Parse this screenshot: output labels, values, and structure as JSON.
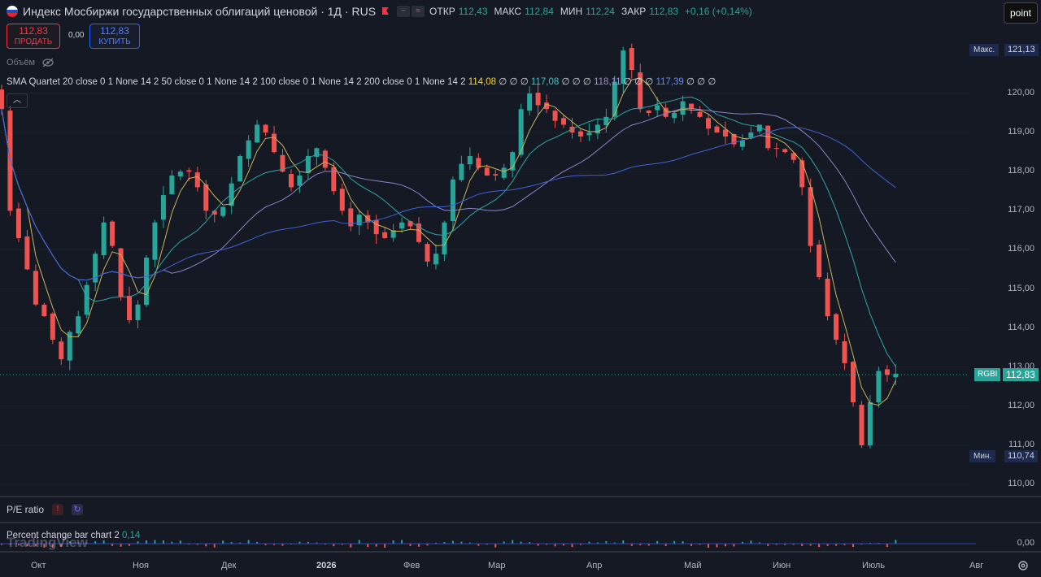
{
  "header": {
    "title": "Индекс Мосбиржи государственных облигаций ценовой · 1Д · RUS",
    "ohlc": [
      {
        "label": "ОТКР",
        "value": "112,43"
      },
      {
        "label": "МАКС",
        "value": "112,84"
      },
      {
        "label": "МИН",
        "value": "112,24"
      },
      {
        "label": "ЗАКР",
        "value": "112,83"
      }
    ],
    "change": "+0,16 (+0,14%)"
  },
  "trade": {
    "sell_price": "112,83",
    "sell_label": "ПРОДАТЬ",
    "spread": "0,00",
    "buy_price": "112,83",
    "buy_label": "КУПИТЬ"
  },
  "volume_label": "Объём",
  "sma_legend": {
    "label": "SMA Quartet 20 close 0 1 None 14 2 50 close 0 1 None 14 2 100 close 0 1 None 14 2 200 close 0 1 None 14 2",
    "v20": "114,08",
    "v50": "117,08",
    "v100": "118,11",
    "v200": "117,39",
    "empty": "∅ ∅ ∅"
  },
  "point_button": "point",
  "price_axis": {
    "ticks": [
      "120,00",
      "119,00",
      "118,00",
      "117,00",
      "116,00",
      "115,00",
      "114,00",
      "113,00",
      "112,00",
      "111,00",
      "110,00"
    ],
    "max_label": "Макс.",
    "max_value": "121,13",
    "min_label": "Мин.",
    "min_value": "110,74",
    "symbol": "RGBI",
    "last_value": "112,83"
  },
  "panes": {
    "pe_label": "P/E ratio",
    "pcb_label": "Percent change bar chart 2",
    "pcb_value": "0,14",
    "pcb_zero": "0,00",
    "logo": "TradingView"
  },
  "time_axis": [
    "Окт",
    "Ноя",
    "Дек",
    "2026",
    "Фев",
    "Мар",
    "Апр",
    "Май",
    "Июн",
    "Июль",
    "Авг"
  ],
  "colors": {
    "up": "#26a69a",
    "down": "#ef5350",
    "sma20": "#c9b458",
    "sma50": "#2fa6a6",
    "sma100": "#8b83c9",
    "sma200": "#3f63d6",
    "background": "#151924"
  },
  "chart_data": {
    "type": "candlestick",
    "interval": "1D",
    "ylim": [
      110,
      121.13
    ],
    "candles_close": [
      119.6,
      117.0,
      116.3,
      115.5,
      114.6,
      114.3,
      113.7,
      113.2,
      113.9,
      114.3,
      115.1,
      115.9,
      116.7,
      116.1,
      114.8,
      114.2,
      114.6,
      115.8,
      116.7,
      117.4,
      117.9,
      118.0,
      118.0,
      117.6,
      117.0,
      116.9,
      117.1,
      117.7,
      118.4,
      118.8,
      119.2,
      119.0,
      118.5,
      118.0,
      117.6,
      117.9,
      118.4,
      118.6,
      118.1,
      117.5,
      117.0,
      116.6,
      116.9,
      116.7,
      116.4,
      116.3,
      116.5,
      116.7,
      116.6,
      116.2,
      115.7,
      115.9,
      116.7,
      117.8,
      118.2,
      118.4,
      118.1,
      117.9,
      117.9,
      118.1,
      118.5,
      119.6,
      120.0,
      119.7,
      119.6,
      119.3,
      119.2,
      119.0,
      118.9,
      119.0,
      119.2,
      119.4,
      120.3,
      121.1,
      120.6,
      119.6,
      119.5,
      119.7,
      119.4,
      119.5,
      119.8,
      119.6,
      119.4,
      119.1,
      119.0,
      118.9,
      118.7,
      118.8,
      119.0,
      119.2,
      118.6,
      118.6,
      118.5,
      118.3,
      117.6,
      116.1,
      115.3,
      114.3,
      113.7,
      113.1,
      112.1,
      111.0,
      112.1,
      112.9,
      112.8,
      112.83
    ],
    "current": 112.83,
    "max": 121.13,
    "min": 110.74
  }
}
